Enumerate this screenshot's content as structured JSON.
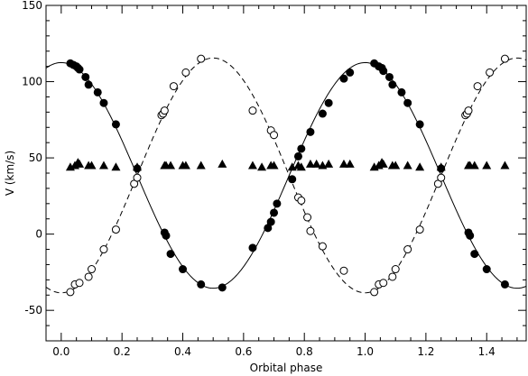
{
  "chart_data": {
    "type": "scatter",
    "title": "",
    "xlabel": "Orbital phase",
    "ylabel": "V (km/s)",
    "xlim": [
      -0.05,
      1.53
    ],
    "ylim": [
      -70,
      150
    ],
    "xticks": [
      0.0,
      0.2,
      0.4,
      0.6,
      0.8,
      1.0,
      1.2,
      1.4
    ],
    "xtick_labels": [
      "0.0",
      "0.2",
      "0.4",
      "0.6",
      "0.8",
      "1.0",
      "1.2",
      "1.4"
    ],
    "yticks": [
      -50,
      0,
      50,
      100,
      150
    ],
    "ytick_labels": [
      "-50",
      "0",
      "50",
      "100",
      "150"
    ],
    "grid": false,
    "series": [
      {
        "marker": "filled-circle",
        "points": [
          [
            0.03,
            112
          ],
          [
            0.04,
            111
          ],
          [
            0.05,
            110
          ],
          [
            0.055,
            109
          ],
          [
            0.06,
            108
          ],
          [
            0.08,
            103
          ],
          [
            0.09,
            98
          ],
          [
            0.12,
            93
          ],
          [
            0.14,
            86
          ],
          [
            0.18,
            72
          ],
          [
            0.25,
            43
          ],
          [
            0.34,
            1
          ],
          [
            0.345,
            -1
          ],
          [
            0.36,
            -13
          ],
          [
            0.4,
            -23
          ],
          [
            0.46,
            -33
          ],
          [
            0.53,
            -35
          ],
          [
            0.63,
            -9
          ],
          [
            0.68,
            4
          ],
          [
            0.69,
            8
          ],
          [
            0.7,
            14
          ],
          [
            0.71,
            20
          ],
          [
            0.76,
            36
          ],
          [
            0.78,
            51
          ],
          [
            0.79,
            56
          ],
          [
            0.82,
            67
          ],
          [
            0.86,
            79
          ],
          [
            0.88,
            86
          ],
          [
            0.93,
            102
          ],
          [
            0.95,
            106
          ],
          [
            1.03,
            112
          ],
          [
            1.045,
            110
          ],
          [
            1.055,
            109
          ],
          [
            1.06,
            107
          ],
          [
            1.08,
            103
          ],
          [
            1.09,
            98
          ],
          [
            1.12,
            93
          ],
          [
            1.14,
            86
          ],
          [
            1.18,
            72
          ],
          [
            1.25,
            43
          ],
          [
            1.34,
            1
          ],
          [
            1.345,
            -1
          ],
          [
            1.36,
            -13
          ],
          [
            1.4,
            -23
          ],
          [
            1.46,
            -33
          ]
        ]
      },
      {
        "marker": "open-circle",
        "points": [
          [
            0.03,
            -38
          ],
          [
            0.045,
            -33
          ],
          [
            0.06,
            -32
          ],
          [
            0.09,
            -28
          ],
          [
            0.1,
            -23
          ],
          [
            0.14,
            -10
          ],
          [
            0.18,
            3
          ],
          [
            0.24,
            33
          ],
          [
            0.25,
            37
          ],
          [
            0.33,
            78
          ],
          [
            0.335,
            79
          ],
          [
            0.34,
            81
          ],
          [
            0.37,
            97
          ],
          [
            0.41,
            106
          ],
          [
            0.46,
            115
          ],
          [
            0.63,
            81
          ],
          [
            0.69,
            68
          ],
          [
            0.7,
            65
          ],
          [
            0.78,
            24
          ],
          [
            0.79,
            22
          ],
          [
            0.81,
            11
          ],
          [
            0.82,
            2
          ],
          [
            0.86,
            -8
          ],
          [
            0.93,
            -24
          ],
          [
            1.03,
            -38
          ],
          [
            1.045,
            -33
          ],
          [
            1.06,
            -32
          ],
          [
            1.09,
            -28
          ],
          [
            1.1,
            -23
          ],
          [
            1.14,
            -10
          ],
          [
            1.18,
            3
          ],
          [
            1.24,
            33
          ],
          [
            1.25,
            37
          ],
          [
            1.33,
            78
          ],
          [
            1.335,
            79
          ],
          [
            1.34,
            81
          ],
          [
            1.37,
            97
          ],
          [
            1.41,
            106
          ],
          [
            1.46,
            115
          ]
        ]
      },
      {
        "marker": "filled-triangle",
        "points": [
          [
            0.03,
            44
          ],
          [
            0.045,
            45
          ],
          [
            0.055,
            47
          ],
          [
            0.06,
            46
          ],
          [
            0.09,
            45
          ],
          [
            0.1,
            45
          ],
          [
            0.14,
            45
          ],
          [
            0.18,
            44
          ],
          [
            0.25,
            44
          ],
          [
            0.34,
            45
          ],
          [
            0.345,
            45
          ],
          [
            0.36,
            45
          ],
          [
            0.4,
            45
          ],
          [
            0.41,
            45
          ],
          [
            0.46,
            45
          ],
          [
            0.53,
            46
          ],
          [
            0.63,
            45
          ],
          [
            0.66,
            44
          ],
          [
            0.69,
            45
          ],
          [
            0.7,
            45
          ],
          [
            0.76,
            44
          ],
          [
            0.78,
            45
          ],
          [
            0.79,
            44
          ],
          [
            0.82,
            46
          ],
          [
            0.84,
            46
          ],
          [
            0.86,
            45
          ],
          [
            0.88,
            46
          ],
          [
            0.93,
            46
          ],
          [
            0.95,
            46
          ],
          [
            1.03,
            44
          ],
          [
            1.045,
            45
          ],
          [
            1.055,
            47
          ],
          [
            1.06,
            46
          ],
          [
            1.09,
            45
          ],
          [
            1.1,
            45
          ],
          [
            1.14,
            45
          ],
          [
            1.18,
            44
          ],
          [
            1.25,
            44
          ],
          [
            1.34,
            45
          ],
          [
            1.345,
            45
          ],
          [
            1.36,
            45
          ],
          [
            1.4,
            45
          ],
          [
            1.46,
            45
          ]
        ]
      },
      {
        "line_style": "solid",
        "curve": "sinusoid",
        "mean": 38.5,
        "amplitude": 74,
        "peak_phase": 0.0
      },
      {
        "line_style": "dashed",
        "curve": "sinusoid",
        "mean": 38.5,
        "amplitude": 77,
        "peak_phase": 0.5
      }
    ]
  }
}
